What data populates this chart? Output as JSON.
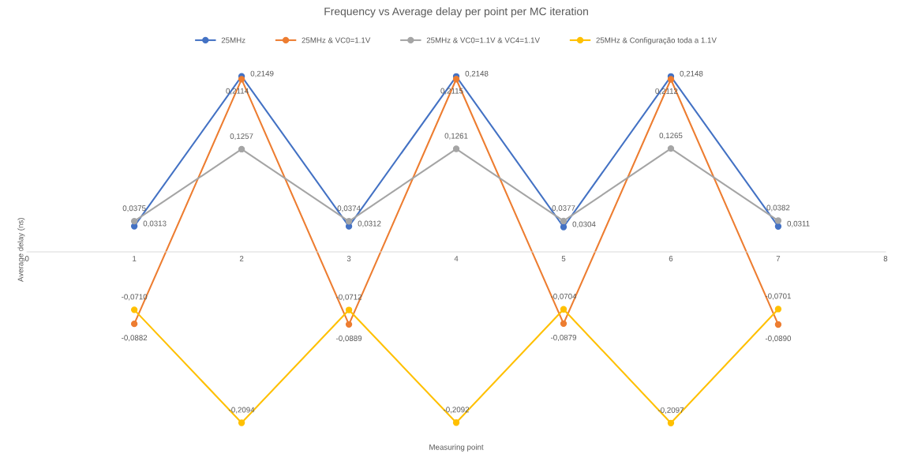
{
  "chart_data": {
    "type": "line",
    "title": "Frequency vs Average delay per point per MC iteration",
    "xlabel": "Measuring point",
    "ylabel": "Average delay (ns)",
    "x": [
      1,
      2,
      3,
      4,
      5,
      6,
      7
    ],
    "xlim": [
      0,
      8
    ],
    "xticks": [
      0,
      1,
      2,
      3,
      4,
      5,
      6,
      7,
      8
    ],
    "tick_labels": "x",
    "grid": false,
    "legend": "top",
    "marker": "circle",
    "line_style": "solid",
    "series": [
      {
        "name": "25MHz",
        "color": "#4472c4",
        "values": [
          0.0313,
          0.2149,
          0.0312,
          0.2148,
          0.0304,
          0.2148,
          0.0311
        ],
        "value_labels": [
          "0,0313",
          "0,2149",
          "0,0312",
          "0,2148",
          "0,0304",
          "0,2148",
          "0,0311"
        ]
      },
      {
        "name": "25MHz & VC0=1.1V",
        "color": "#ed7d31",
        "values": [
          -0.0882,
          0.2114,
          -0.0889,
          0.2115,
          -0.0879,
          0.2112,
          -0.089
        ],
        "value_labels": [
          "-0,0882",
          "0,2114",
          "-0,0889",
          "0,2115",
          "-0,0879",
          "0,2112",
          "-0,0890"
        ]
      },
      {
        "name": "25MHz & VC0=1.1V & VC4=1.1V",
        "color": "#a5a5a5",
        "values": [
          0.0375,
          0.1257,
          0.0374,
          0.1261,
          0.0377,
          0.1265,
          0.0382
        ],
        "value_labels": [
          "0,0375",
          "0,1257",
          "0,0374",
          "0,1261",
          "0,0377",
          "0,1265",
          "0,0382"
        ]
      },
      {
        "name": "25MHz & Configuração toda a 1.1V",
        "color": "#ffc000",
        "values": [
          -0.071,
          -0.2094,
          -0.0712,
          -0.2092,
          -0.0704,
          -0.2097,
          -0.0701
        ],
        "value_labels": [
          "-0,0710",
          "-0,2094",
          "-0,0712",
          "-0,2092",
          "-0,0704",
          "-0,2097",
          "-0,0701"
        ]
      }
    ]
  }
}
